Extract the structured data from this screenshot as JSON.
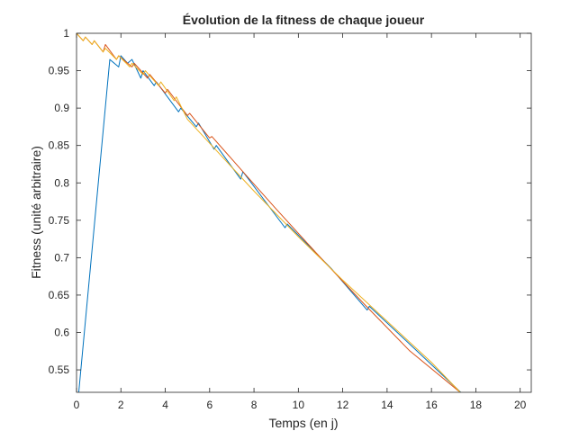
{
  "chart_data": {
    "type": "line",
    "title": "Évolution de la fitness de chaque joueur",
    "xlabel": "Temps (en j)",
    "ylabel": "Fitness (unité arbitraire)",
    "xlim": [
      0,
      20.5
    ],
    "ylim": [
      0.52,
      1
    ],
    "grid": false,
    "box": true,
    "xticks": [
      0,
      2,
      4,
      6,
      8,
      10,
      12,
      14,
      16,
      18,
      20
    ],
    "xtick_labels": [
      "0",
      "2",
      "4",
      "6",
      "8",
      "10",
      "12",
      "14",
      "16",
      "18",
      "20"
    ],
    "yticks": [
      0.55,
      0.6,
      0.65,
      0.7,
      0.75,
      0.8,
      0.85,
      0.9,
      0.95,
      1
    ],
    "ytick_labels": [
      "0.55",
      "0.6",
      "0.65",
      "0.7",
      "0.75",
      "0.8",
      "0.85",
      "0.9",
      "0.95",
      "1"
    ],
    "series": [
      {
        "color": "#0072BD",
        "x": [
          0.1,
          1.5,
          1.9,
          2.0,
          2.3,
          2.5,
          2.9,
          3.0,
          3.5,
          3.6,
          4.6,
          4.7,
          5.4,
          5.5,
          6.2,
          6.3,
          7.4,
          7.5,
          9.4,
          9.5,
          11.5,
          13.1,
          13.2,
          15.0,
          17.5
        ],
        "y": [
          0.52,
          0.965,
          0.955,
          0.97,
          0.96,
          0.965,
          0.94,
          0.95,
          0.93,
          0.935,
          0.895,
          0.9,
          0.875,
          0.88,
          0.845,
          0.85,
          0.805,
          0.815,
          0.74,
          0.745,
          0.685,
          0.63,
          0.635,
          0.585,
          0.515
        ]
      },
      {
        "color": "#D95319",
        "x": [
          0.0,
          0.3,
          0.4,
          0.7,
          0.8,
          1.2,
          1.3,
          1.8,
          1.9,
          2.5,
          2.6,
          3.2,
          3.3,
          4.0,
          4.1,
          5.0,
          5.1,
          6.0,
          6.1,
          7.5,
          9.0,
          11.0,
          13.0,
          15.0,
          17.5
        ],
        "y": [
          1.0,
          0.99,
          0.995,
          0.985,
          0.99,
          0.975,
          0.985,
          0.965,
          0.97,
          0.955,
          0.96,
          0.94,
          0.945,
          0.92,
          0.925,
          0.89,
          0.893,
          0.86,
          0.862,
          0.815,
          0.765,
          0.7,
          0.637,
          0.576,
          0.515
        ]
      },
      {
        "color": "#EDB120",
        "x": [
          0.0,
          0.3,
          0.4,
          0.7,
          0.8,
          1.2,
          1.3,
          1.8,
          1.9,
          2.4,
          2.5,
          3.0,
          3.1,
          3.7,
          3.8,
          4.4,
          4.5,
          5.0,
          6.0,
          8.0,
          10.0,
          12.0,
          14.0,
          16.0,
          17.3
        ],
        "y": [
          1.0,
          0.99,
          0.995,
          0.985,
          0.99,
          0.975,
          0.98,
          0.965,
          0.97,
          0.955,
          0.96,
          0.945,
          0.95,
          0.93,
          0.935,
          0.91,
          0.915,
          0.885,
          0.853,
          0.789,
          0.728,
          0.67,
          0.615,
          0.56,
          0.52
        ]
      }
    ]
  }
}
